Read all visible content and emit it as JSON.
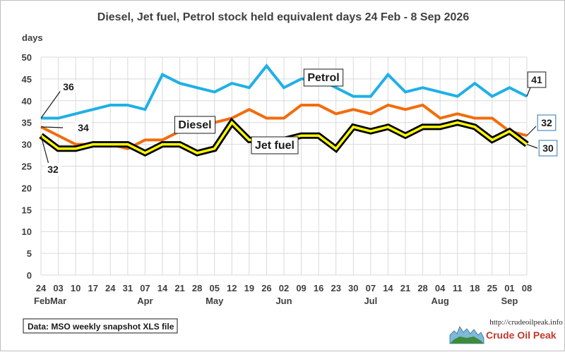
{
  "chart_data": {
    "type": "line",
    "title": "Diesel, Jet fuel, Petrol stock held equivalent days 24 Feb - 8 Sep 2026",
    "ylabel": "days",
    "xlabel": "",
    "ylim": [
      0,
      50
    ],
    "yticks": [
      0,
      5,
      10,
      15,
      20,
      25,
      30,
      35,
      40,
      45,
      50
    ],
    "grid": true,
    "categories": [
      "24",
      "03",
      "10",
      "17",
      "24",
      "31",
      "07",
      "14",
      "21",
      "28",
      "05",
      "12",
      "19",
      "26",
      "02",
      "09",
      "16",
      "23",
      "30",
      "07",
      "14",
      "21",
      "28",
      "04",
      "11",
      "18",
      "25",
      "01",
      "08"
    ],
    "month_labels": [
      {
        "index": 0,
        "label": "Feb"
      },
      {
        "index": 1,
        "label": "Mar"
      },
      {
        "index": 6,
        "label": "Apr"
      },
      {
        "index": 10,
        "label": "May"
      },
      {
        "index": 14,
        "label": "Jun"
      },
      {
        "index": 19,
        "label": "Jul"
      },
      {
        "index": 23,
        "label": "Aug"
      },
      {
        "index": 27,
        "label": "Sep"
      }
    ],
    "series": [
      {
        "name": "Petrol",
        "color": "#1fb0e6",
        "values": [
          36,
          36,
          37,
          38,
          39,
          39,
          38,
          46,
          44,
          43,
          42,
          44,
          43,
          48,
          43,
          45,
          45,
          43,
          41,
          41,
          46,
          42,
          43,
          42,
          41,
          44,
          41,
          43,
          41
        ]
      },
      {
        "name": "Diesel",
        "color": "#f26c0d",
        "values": [
          34,
          32,
          30,
          30,
          30,
          29,
          31,
          31,
          33,
          34,
          35,
          36,
          38,
          36,
          36,
          39,
          39,
          37,
          38,
          37,
          39,
          38,
          39,
          36,
          37,
          36,
          36,
          33,
          32
        ]
      },
      {
        "name": "Jet fuel",
        "color": "#ffff00",
        "outline": "#000000",
        "values": [
          32,
          29,
          29,
          30,
          30,
          30,
          28,
          30,
          30,
          28,
          29,
          35,
          31,
          31,
          31,
          32,
          32,
          29,
          34,
          33,
          34,
          32,
          34,
          34,
          35,
          34,
          31,
          33,
          30
        ]
      }
    ],
    "callouts": [
      {
        "text": "36"
      },
      {
        "text": "34"
      },
      {
        "text": "32"
      },
      {
        "text": "41"
      },
      {
        "text": "32"
      },
      {
        "text": "30"
      }
    ],
    "series_labels": [
      "Petrol",
      "Diesel",
      "Jet fuel"
    ],
    "source_note": "Data: MSO weekly snapshot XLS file",
    "brand": {
      "url": "http://crudeoilpeak.info",
      "name": "Crude Oil Peak"
    }
  }
}
